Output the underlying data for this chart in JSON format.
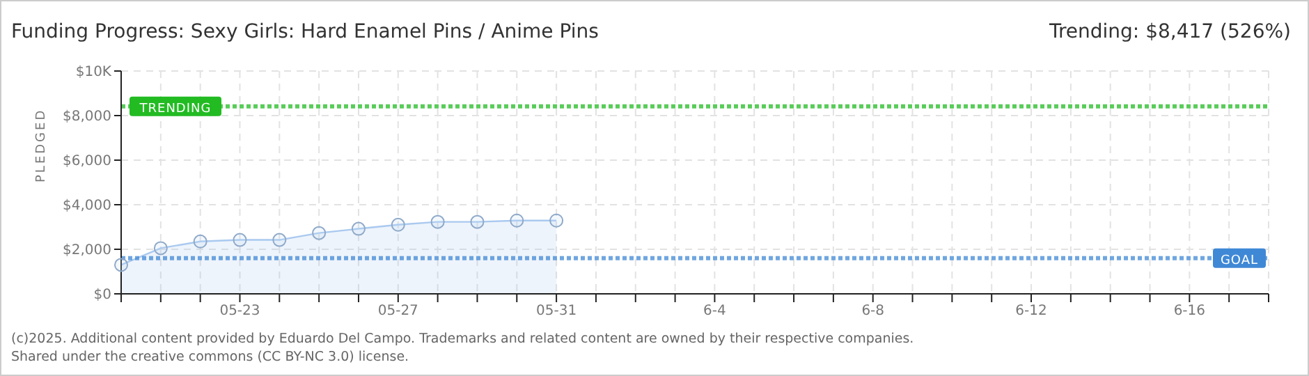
{
  "chart_data": {
    "type": "area",
    "title": "Funding Progress: Sexy Girls: Hard Enamel Pins / Anime Pins",
    "subtitle": "Trending: $8,417 (526%)",
    "ylabel": "PLEDGED",
    "categories": [
      null,
      null,
      null,
      "05-23",
      null,
      null,
      null,
      "05-27",
      null,
      null,
      null,
      "05-31",
      null,
      null,
      null,
      "6-4",
      null,
      null,
      null,
      "6-8",
      null,
      null,
      null,
      "6-12",
      null,
      null,
      null,
      "6-16",
      null,
      null
    ],
    "series": [
      {
        "color": "#a9c9ef",
        "values": [
          1300,
          2050,
          2350,
          2420,
          2420,
          2730,
          2920,
          3100,
          3230,
          3230,
          3290,
          3290,
          null,
          null,
          null,
          null,
          null,
          null,
          null,
          null,
          null,
          null,
          null,
          null,
          null,
          null,
          null,
          null,
          null,
          null
        ]
      }
    ],
    "ylim": [
      0,
      10000
    ],
    "yticks": [
      {
        "value": 0,
        "label": "$0"
      },
      {
        "value": 2000,
        "label": "$2,000"
      },
      {
        "value": 4000,
        "label": "$4,000"
      },
      {
        "value": 6000,
        "label": "$6,000"
      },
      {
        "value": 8000,
        "label": "$8,000"
      },
      {
        "value": 10000,
        "label": "$10K"
      }
    ],
    "grid": true,
    "marker": "circle",
    "legend": false,
    "ref_lines": [
      {
        "axis": "y",
        "value": 8417,
        "label": "TRENDING",
        "color": "#22bb22",
        "line_style": "dotted"
      },
      {
        "axis": "y",
        "value": 1600,
        "label": "GOAL",
        "color": "#3f88d6",
        "line_style": "dotted"
      }
    ],
    "annotations": [
      "(c)2025. Additional content provided by Eduardo Del Campo. Trademarks and related content are owned by their respective companies.",
      "Shared under the creative commons (CC BY-NC 3.0) license."
    ]
  }
}
